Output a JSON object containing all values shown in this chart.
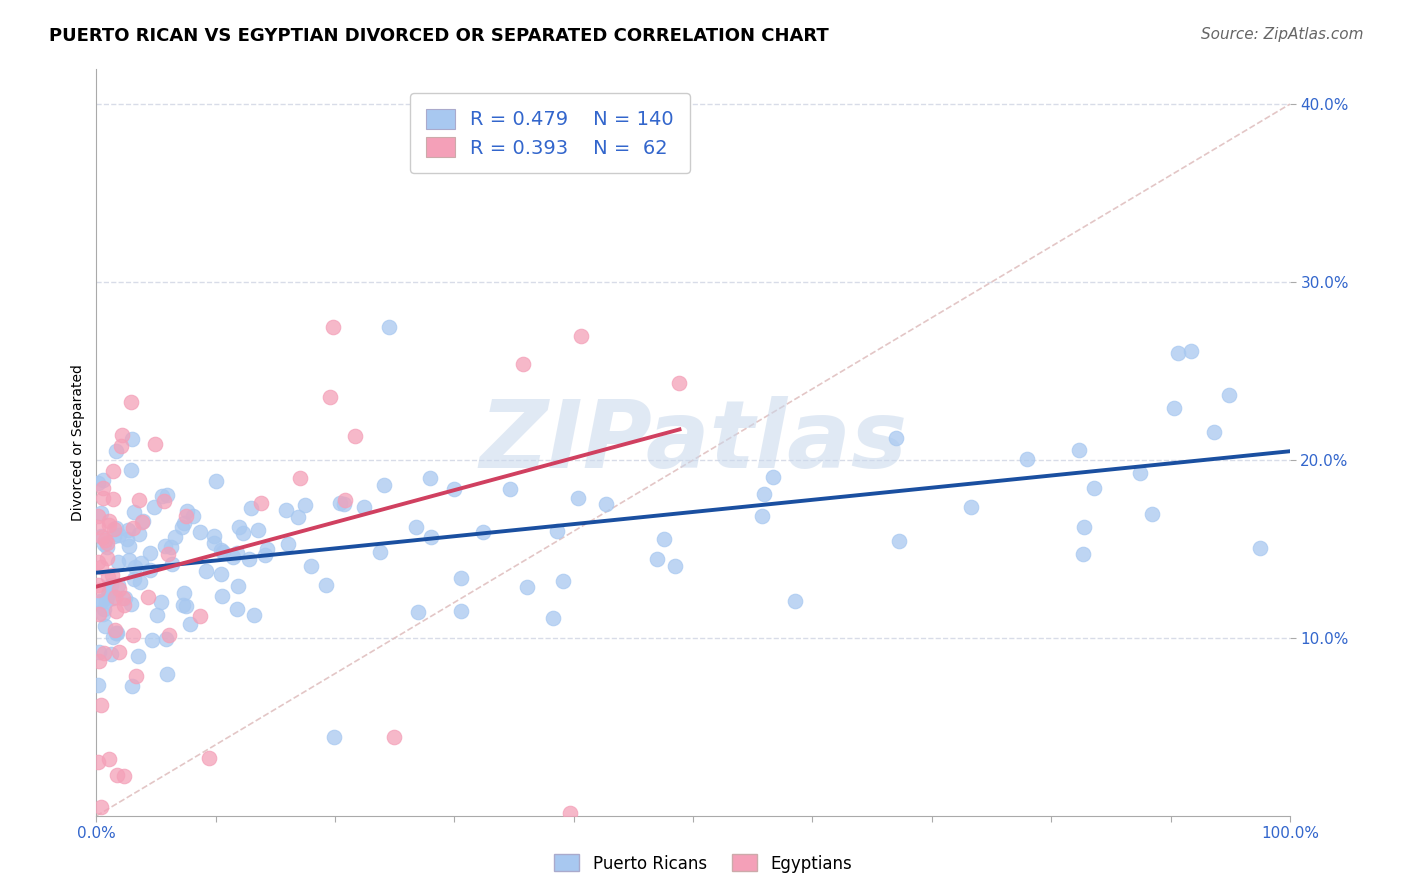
{
  "title": "PUERTO RICAN VS EGYPTIAN DIVORCED OR SEPARATED CORRELATION CHART",
  "source": "Source: ZipAtlas.com",
  "ylabel": "Divorced or Separated",
  "xlim": [
    0,
    1.0
  ],
  "ylim": [
    0,
    0.42
  ],
  "xticks": [
    0.0,
    0.1,
    0.2,
    0.3,
    0.4,
    0.5,
    0.6,
    0.7,
    0.8,
    0.9,
    1.0
  ],
  "xticklabels": [
    "0.0%",
    "",
    "",
    "",
    "",
    "",
    "",
    "",
    "",
    "",
    "100.0%"
  ],
  "yticks": [
    0.1,
    0.2,
    0.3,
    0.4
  ],
  "yticklabels": [
    "10.0%",
    "20.0%",
    "30.0%",
    "40.0%"
  ],
  "blue_color": "#a8c8f0",
  "pink_color": "#f4a0b8",
  "blue_line_color": "#1a4fa0",
  "pink_line_color": "#d04060",
  "diagonal_color": "#e0c0c0",
  "grid_color": "#d8dce8",
  "legend_r_blue": "0.479",
  "legend_n_blue": "140",
  "legend_r_pink": "0.393",
  "legend_n_pink": "62",
  "watermark": "ZIPatlas",
  "title_fontsize": 13,
  "axis_label_fontsize": 10,
  "tick_fontsize": 11,
  "legend_fontsize": 14,
  "source_fontsize": 11
}
